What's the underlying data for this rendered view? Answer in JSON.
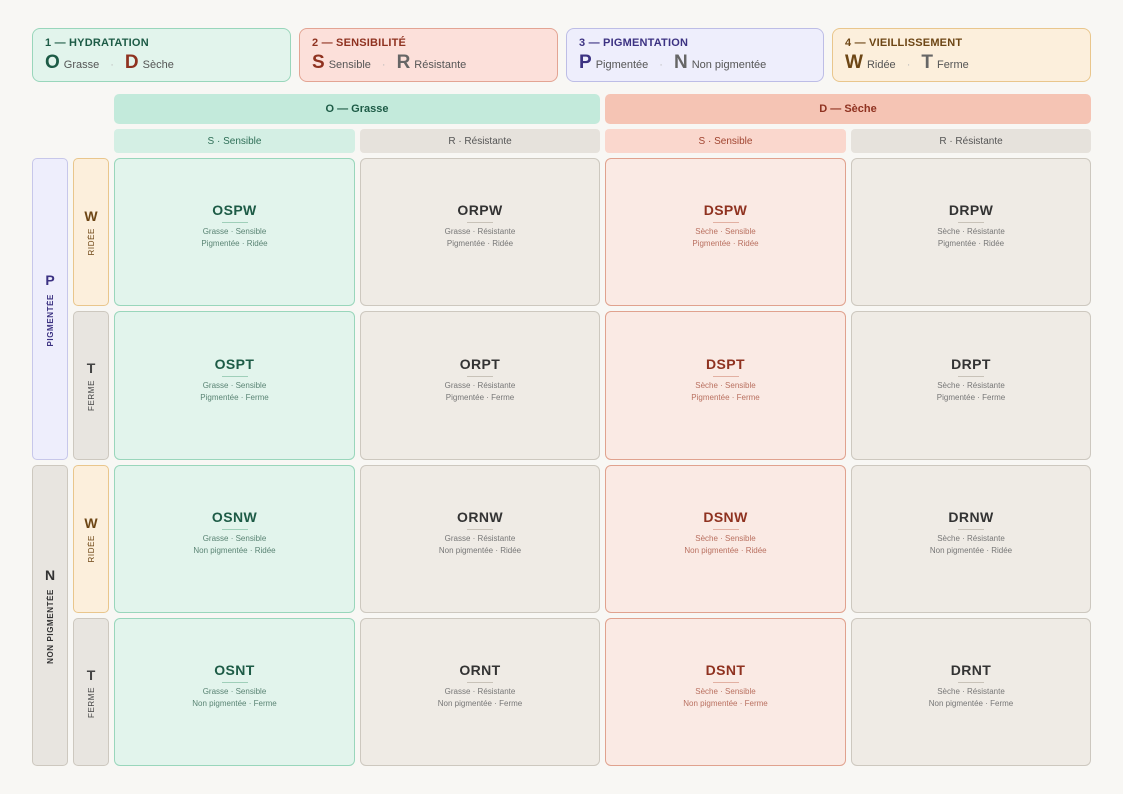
{
  "legend": [
    {
      "title": "1 — HYDRATATION",
      "a_letter": "O",
      "a_word": "Grasse",
      "b_letter": "D",
      "b_word": "Sèche",
      "a_color": "#1d5b46",
      "b_color": "#8f3220"
    },
    {
      "title": "2 — SENSIBILITÉ",
      "a_letter": "S",
      "a_word": "Sensible",
      "b_letter": "R",
      "b_word": "Résistante",
      "a_color": "#8f3220",
      "b_color": "#666666"
    },
    {
      "title": "3 — PIGMENTATION",
      "a_letter": "P",
      "a_word": "Pigmentée",
      "b_letter": "N",
      "b_word": "Non pigmentée",
      "a_color": "#3c3282",
      "b_color": "#666666"
    },
    {
      "title": "4 — VIEILLISSEMENT",
      "a_letter": "W",
      "a_word": "Ridée",
      "b_letter": "T",
      "b_word": "Ferme",
      "a_color": "#6d4615",
      "b_color": "#666666"
    }
  ],
  "legend_sep": "·",
  "columns": {
    "hydration": [
      "O — Grasse",
      "D — Sèche"
    ],
    "sensitivity": [
      "S · Sensible",
      "R · Résistante",
      "S · Sensible",
      "R · Résistante"
    ]
  },
  "pigment_rows": [
    {
      "letter": "P",
      "label": "PIGMENTÉE"
    },
    {
      "letter": "N",
      "label": "NON PIGMENTÉE"
    }
  ],
  "age_rows": [
    {
      "letter": "W",
      "label": "RIDÉE"
    },
    {
      "letter": "T",
      "label": "FERME"
    },
    {
      "letter": "W",
      "label": "RIDÉE"
    },
    {
      "letter": "T",
      "label": "FERME"
    }
  ],
  "cells": [
    [
      {
        "code": "OSPW",
        "line1": "Grasse · Sensible",
        "line2": "Pigmentée · Ridée"
      },
      {
        "code": "ORPW",
        "line1": "Grasse · Résistante",
        "line2": "Pigmentée · Ridée"
      },
      {
        "code": "DSPW",
        "line1": "Sèche · Sensible",
        "line2": "Pigmentée · Ridée"
      },
      {
        "code": "DRPW",
        "line1": "Sèche · Résistante",
        "line2": "Pigmentée · Ridée"
      }
    ],
    [
      {
        "code": "OSPT",
        "line1": "Grasse · Sensible",
        "line2": "Pigmentée · Ferme"
      },
      {
        "code": "ORPT",
        "line1": "Grasse · Résistante",
        "line2": "Pigmentée · Ferme"
      },
      {
        "code": "DSPT",
        "line1": "Sèche · Sensible",
        "line2": "Pigmentée · Ferme"
      },
      {
        "code": "DRPT",
        "line1": "Sèche · Résistante",
        "line2": "Pigmentée · Ferme"
      }
    ],
    [
      {
        "code": "OSNW",
        "line1": "Grasse · Sensible",
        "line2": "Non pigmentée · Ridée"
      },
      {
        "code": "ORNW",
        "line1": "Grasse · Résistante",
        "line2": "Non pigmentée · Ridée"
      },
      {
        "code": "DSNW",
        "line1": "Sèche · Sensible",
        "line2": "Non pigmentée · Ridée"
      },
      {
        "code": "DRNW",
        "line1": "Sèche · Résistante",
        "line2": "Non pigmentée · Ridée"
      }
    ],
    [
      {
        "code": "OSNT",
        "line1": "Grasse · Sensible",
        "line2": "Non pigmentée · Ferme"
      },
      {
        "code": "ORNT",
        "line1": "Grasse · Résistante",
        "line2": "Non pigmentée · Ferme"
      },
      {
        "code": "DSNT",
        "line1": "Sèche · Sensible",
        "line2": "Non pigmentée · Ferme"
      },
      {
        "code": "DRNT",
        "line1": "Sèche · Résistante",
        "line2": "Non pigmentée · Ferme"
      }
    ]
  ]
}
